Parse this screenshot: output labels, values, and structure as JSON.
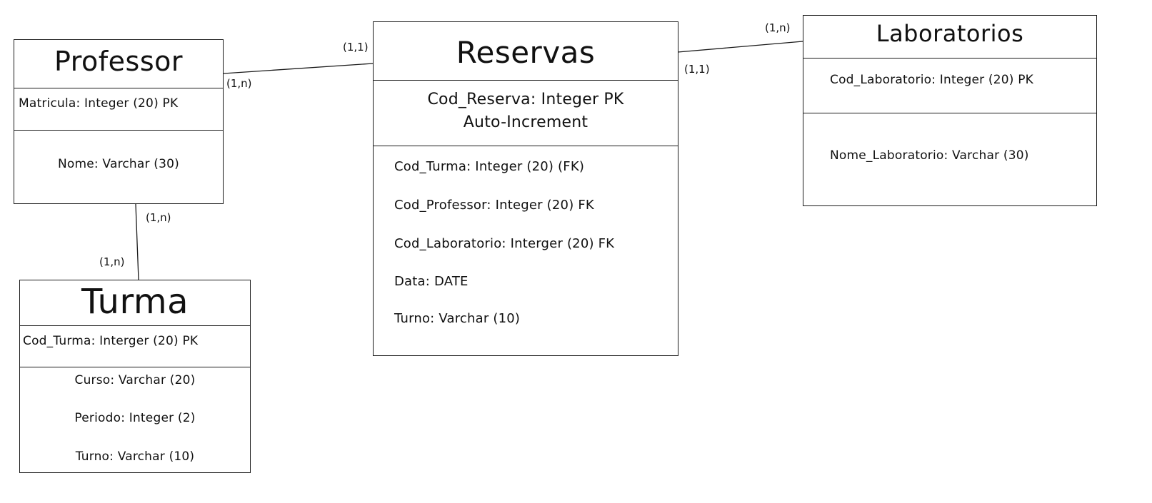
{
  "entities": {
    "professor": {
      "title": "Professor",
      "pk": "Matricula: Integer (20) PK",
      "attributes": [
        "Nome: Varchar (30)"
      ]
    },
    "turma": {
      "title": "Turma",
      "pk": "Cod_Turma: Interger (20) PK",
      "attributes": [
        "Curso: Varchar (20)",
        "Periodo: Integer (2)",
        "Turno: Varchar (10)"
      ]
    },
    "reservas": {
      "title": "Reservas",
      "pk_line1": "Cod_Reserva: Integer PK",
      "pk_line2": "Auto-Increment",
      "attributes": [
        "Cod_Turma: Integer (20) (FK)",
        "Cod_Professor: Integer (20) FK",
        "Cod_Laboratorio: Interger (20) FK",
        "Data: DATE",
        "Turno: Varchar (10)"
      ]
    },
    "laboratorios": {
      "title": "Laboratorios",
      "pk": "Cod_Laboratorio: Integer (20) PK",
      "attributes": [
        "Nome_Laboratorio: Varchar (30)"
      ]
    }
  },
  "cardinalities": {
    "professor_reservas_professor_side": "(1,n)",
    "professor_reservas_reservas_side": "(1,1)",
    "reservas_laboratorios_reservas_side": "(1,1)",
    "reservas_laboratorios_laboratorios_side": "(1,n)",
    "professor_turma_professor_side": "(1,n)",
    "professor_turma_turma_side": "(1,n)"
  }
}
